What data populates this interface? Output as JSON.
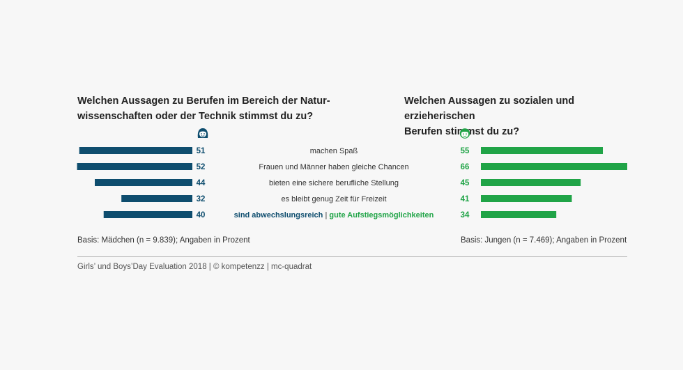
{
  "chart_data": {
    "type": "bar",
    "title_left_line1": "Welchen Aussagen zu Berufen im Bereich der Natur-",
    "title_left_line2": "wissenschaften oder der Technik stimmst du zu?",
    "title_right_line1": "Welchen Aussagen zu sozialen und erzieherischen",
    "title_right_line2": "Berufen stimmst du zu?",
    "categories": [
      "machen Spaß",
      "Frauen und Männer haben gleiche Chancen",
      "bieten eine sichere berufliche Stellung",
      "es bleibt genug Zeit für Freizeit",
      "sind abwechslungsreich | gute Aufstiegsmöglichkeiten"
    ],
    "last_category_parts": {
      "left": "sind abwechslungsreich",
      "separator": "|",
      "right": "gute Aufstiegsmöglichkeiten"
    },
    "series": [
      {
        "values": [
          51,
          52,
          44,
          32,
          40
        ],
        "color": "#0e4d6e"
      },
      {
        "values": [
          55,
          66,
          45,
          41,
          34
        ],
        "color": "#20a447"
      }
    ],
    "xlim": [
      0,
      66
    ],
    "grid": false
  },
  "footer": {
    "basis_left": "Basis: Mädchen (n = 9.839); Angaben in Prozent",
    "basis_right": "Basis: Jungen (n = 7.469); Angaben in Prozent",
    "source": "Girls’ und Boys’Day Evaluation 2018 | © kompetenzz | mc-quadrat"
  },
  "icons": {
    "left": "girl-face-icon",
    "right": "boy-face-icon"
  }
}
